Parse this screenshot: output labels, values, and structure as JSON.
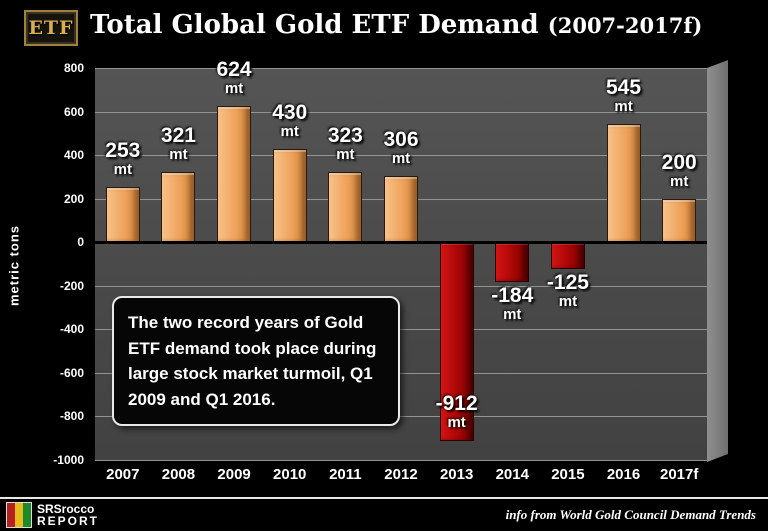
{
  "header": {
    "badge": "ETF",
    "title_main": "Total Global Gold ETF Demand ",
    "title_suffix": "(2007-2017f)"
  },
  "chart_data": {
    "type": "bar",
    "title": "Total Global Gold ETF Demand (2007-2017f)",
    "categories": [
      "2007",
      "2008",
      "2009",
      "2010",
      "2011",
      "2012",
      "2013",
      "2014",
      "2015",
      "2016",
      "2017f"
    ],
    "values": [
      253,
      321,
      624,
      430,
      323,
      306,
      -912,
      -184,
      -125,
      545,
      200
    ],
    "unit": "mt",
    "xlabel": "",
    "ylabel": "metric tons",
    "ylim": [
      -1000,
      800
    ],
    "yticks": [
      800,
      600,
      400,
      200,
      0,
      -200,
      -400,
      -600,
      -800,
      -1000
    ],
    "grid": true,
    "legend": false,
    "positive_color": "#EFA35C",
    "negative_color": "#A80606",
    "plot_background": "#4A4A4A"
  },
  "annotation": {
    "text": "The two record years of Gold ETF demand took place during large stock market turmoil, Q1 2009 and Q1 2016."
  },
  "footer": {
    "logo_line1": "SRSrocco",
    "logo_line2": "REPORT",
    "credit": "info from World Gold Council Demand Trends"
  }
}
